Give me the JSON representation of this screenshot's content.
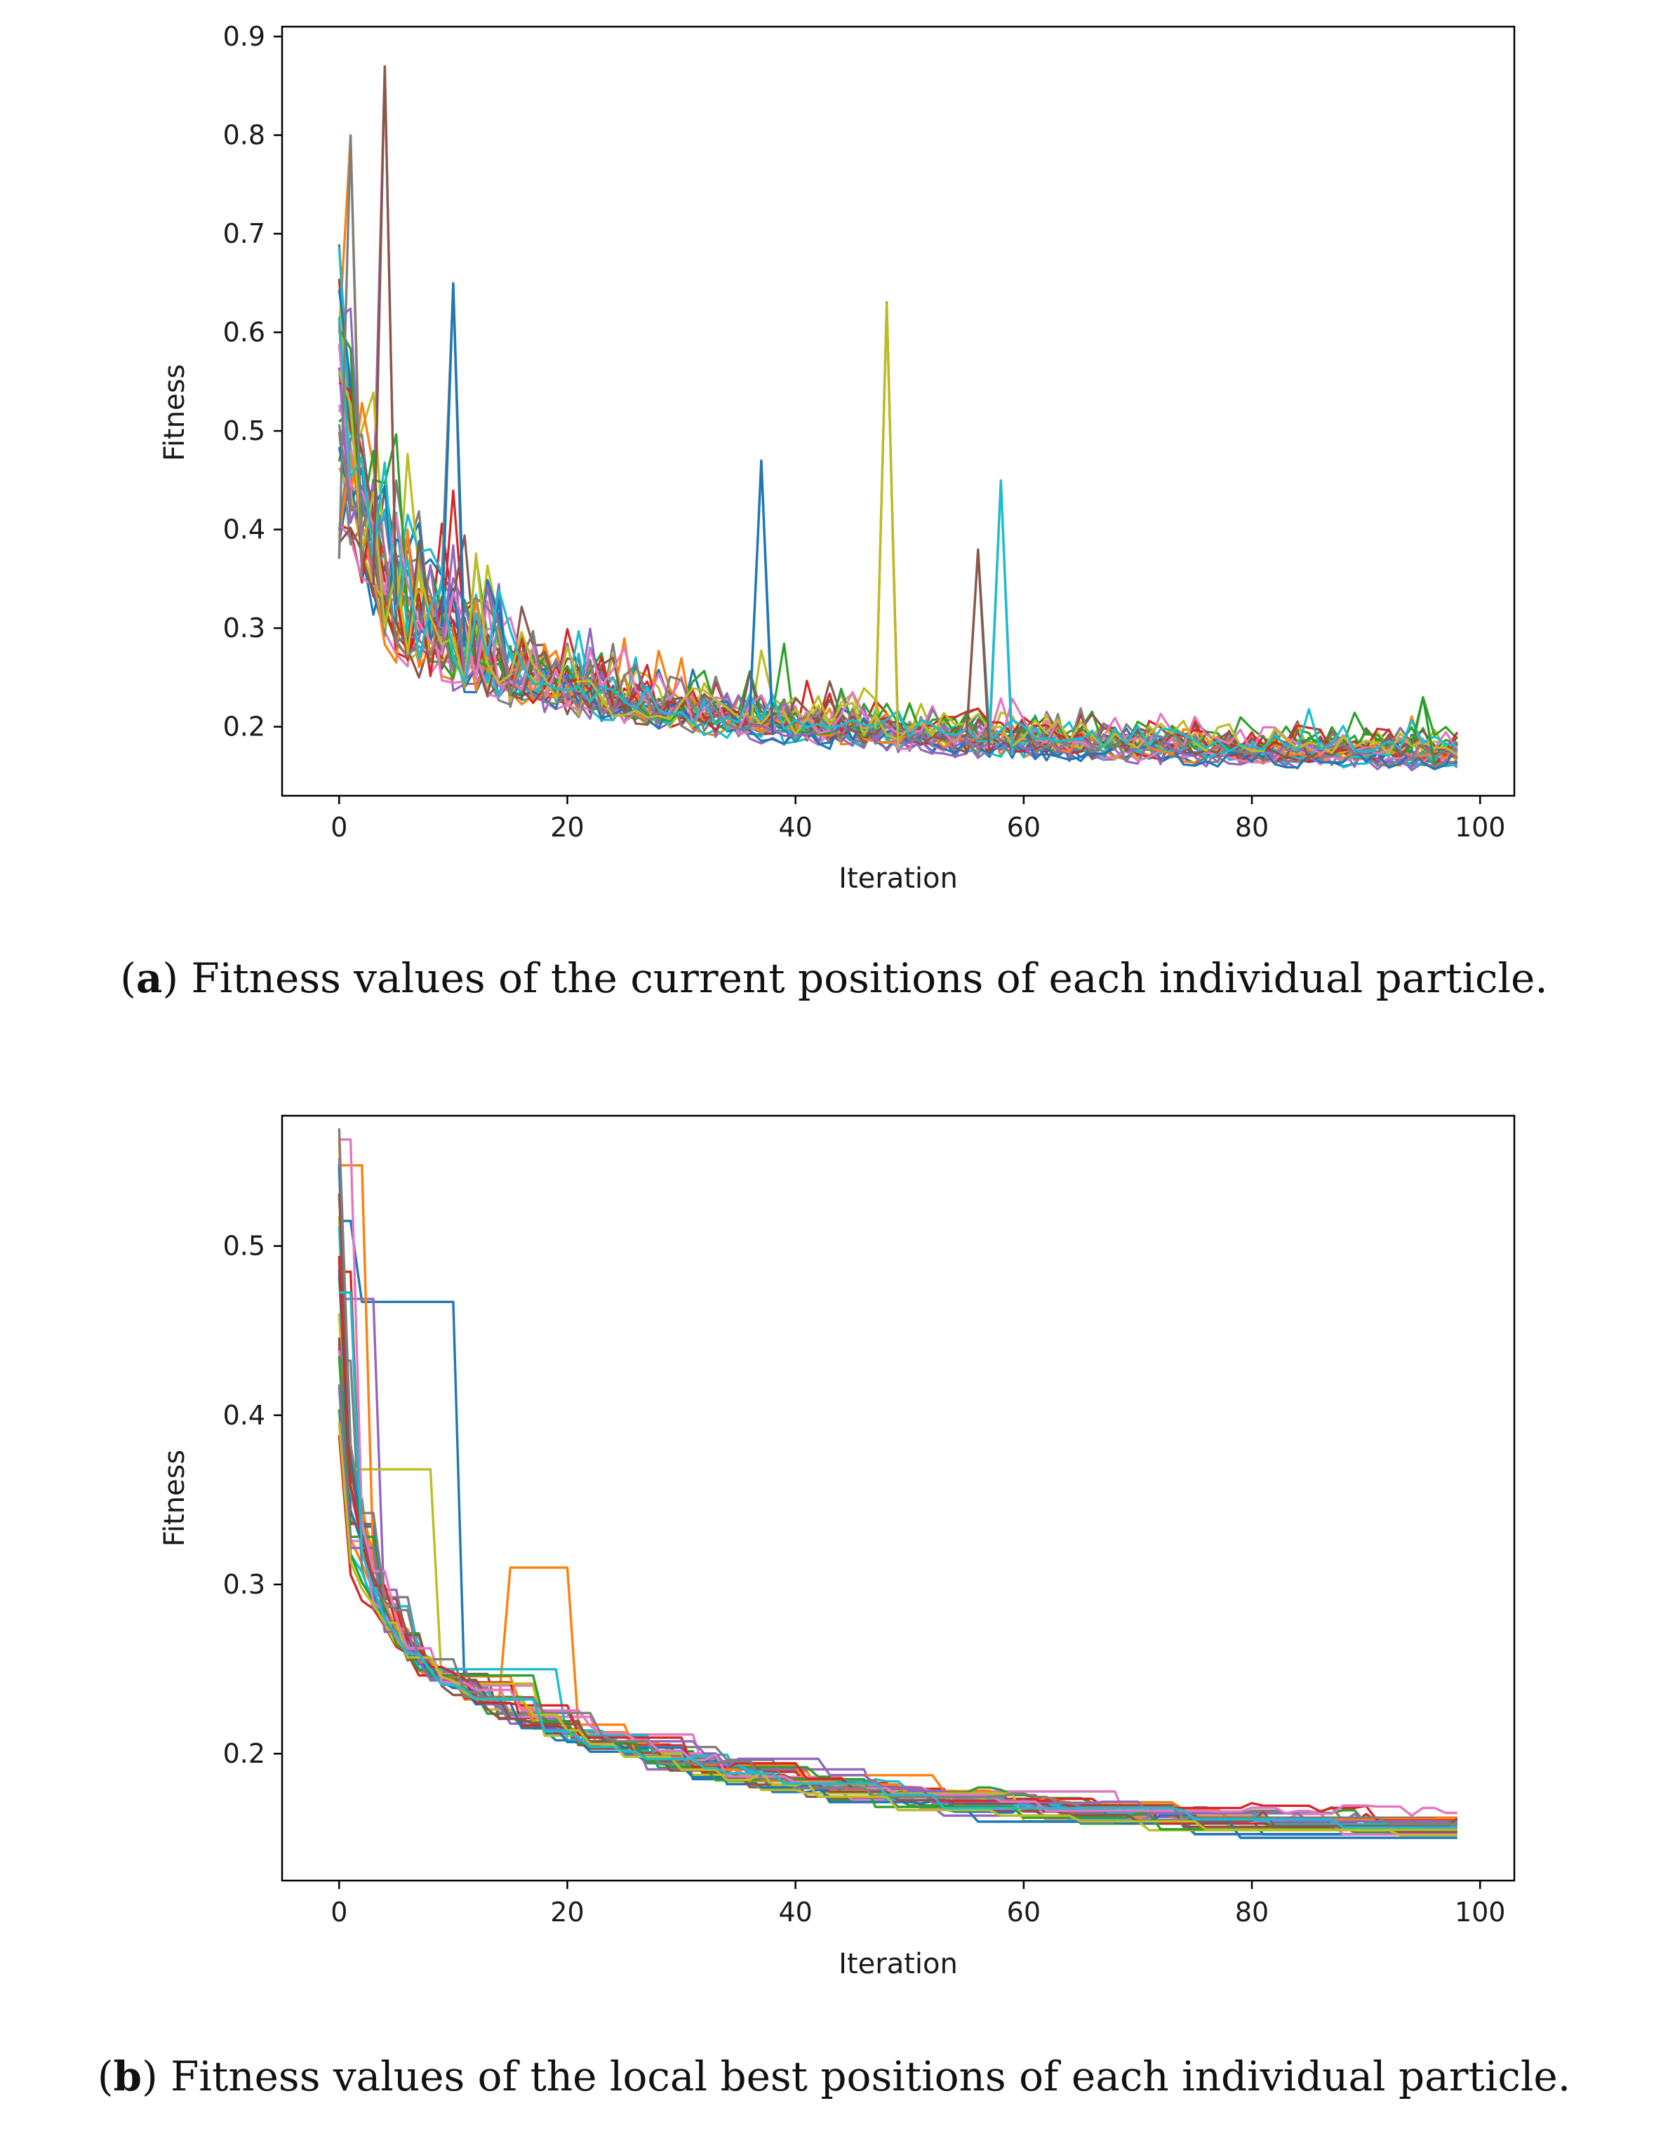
{
  "chart_data": [
    {
      "type": "line",
      "panel": "a",
      "title": "",
      "xlabel": "Iteration",
      "ylabel": "Fitness",
      "xlim": [
        -5,
        103
      ],
      "ylim": [
        0.13,
        0.91
      ],
      "xticks": [
        0,
        20,
        40,
        60,
        80,
        100
      ],
      "yticks": [
        0.2,
        0.3,
        0.4,
        0.5,
        0.6,
        0.7,
        0.8,
        0.9
      ],
      "ytick_labels": [
        "0.2",
        "0.3",
        "0.4",
        "0.5",
        "0.6",
        "0.7",
        "0.8",
        "0.9"
      ],
      "num_series": 30,
      "series_summary": {
        "x_range": [
          0,
          98
        ],
        "start_range": [
          0.38,
          0.69
        ],
        "end_range": [
          0.15,
          0.21
        ],
        "spikes": [
          {
            "iteration": 1,
            "value": 0.8,
            "color": "#7f7f7f"
          },
          {
            "iteration": 4,
            "value": 0.87,
            "color": "#8c564b"
          },
          {
            "iteration": 10,
            "value": 0.65,
            "color": "#1f77b4"
          },
          {
            "iteration": 37,
            "value": 0.47,
            "color": "#1f77b4"
          },
          {
            "iteration": 48,
            "value": 0.63,
            "color": "#bcbd22"
          },
          {
            "iteration": 58,
            "value": 0.45,
            "color": "#17becf"
          },
          {
            "iteration": 56,
            "value": 0.38,
            "color": "#8c564b"
          },
          {
            "iteration": 95,
            "value": 0.23,
            "color": "#2ca02c"
          }
        ]
      },
      "caption": {
        "label": "a",
        "text": "Fitness values of the current positions of each individual particle."
      }
    },
    {
      "type": "line",
      "panel": "b",
      "title": "",
      "xlabel": "Iteration",
      "ylabel": "Fitness",
      "xlim": [
        -5,
        103
      ],
      "ylim": [
        0.125,
        0.577
      ],
      "xticks": [
        0,
        20,
        40,
        60,
        80,
        100
      ],
      "yticks": [
        0.2,
        0.3,
        0.4,
        0.5
      ],
      "ytick_labels": [
        "0.2",
        "0.3",
        "0.4",
        "0.5"
      ],
      "num_series": 30,
      "series_summary": {
        "x_range": [
          0,
          98
        ],
        "start_range": [
          0.38,
          0.57
        ],
        "end_range": [
          0.148,
          0.16
        ],
        "notable": [
          {
            "series_color": "#1f77b4",
            "plateau_value": 0.467,
            "from": 2,
            "to": 10
          },
          {
            "series_color": "#ff7f0e",
            "plateau_value": 0.31,
            "from": 15,
            "to": 20
          }
        ]
      },
      "caption": {
        "label": "b",
        "text": "Fitness values of the local best positions of each individual particle."
      }
    }
  ],
  "colors": [
    "#1f77b4",
    "#ff7f0e",
    "#2ca02c",
    "#d62728",
    "#9467bd",
    "#8c564b",
    "#e377c2",
    "#7f7f7f",
    "#bcbd22",
    "#17becf"
  ],
  "captions": {
    "a_label": "a",
    "a_text": "Fitness values of the current positions of each individual particle.",
    "b_label": "b",
    "b_text": "Fitness values of the local best positions of each individual particle."
  }
}
